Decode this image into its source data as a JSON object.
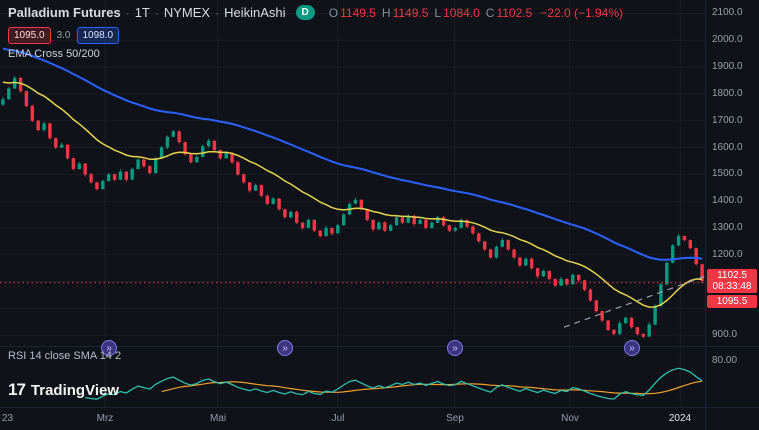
{
  "header": {
    "symbol": "Palladium Futures",
    "sep": "·",
    "interval": "1T",
    "exchange": "NYMEX",
    "chart_style": "HeikinAshi",
    "interval_badge": "D",
    "ohlc": {
      "o_label": "O",
      "o_value": "1149.5",
      "h_label": "H",
      "h_value": "1149.5",
      "l_label": "L",
      "l_value": "1084.0",
      "c_label": "C",
      "c_value": "1102.5",
      "change": "−22.0 (−1.94%)"
    },
    "bid": "1095.0",
    "spread": "3.0",
    "ask": "1098.0",
    "indicator_label": "EMA Cross 50/200"
  },
  "rsi_label": "RSI 14 close SMA 14 2",
  "price_scale": {
    "tick_values": [
      2100,
      2000,
      1900,
      1800,
      1700,
      1600,
      1500,
      1400,
      1300,
      1200,
      900
    ],
    "last_price": "1102.5",
    "countdown": "08:33:48",
    "line_price": "1095.5",
    "rsi_tick": "80.00"
  },
  "time_scale": {
    "ticks": [
      {
        "label": "23",
        "f": 0.0
      },
      {
        "label": "Mrz",
        "f": 0.149
      },
      {
        "label": "Mai",
        "f": 0.309
      },
      {
        "label": "Jul",
        "f": 0.479
      },
      {
        "label": "Sep",
        "f": 0.645
      },
      {
        "label": "Nov",
        "f": 0.808
      },
      {
        "label": "2024",
        "f": 0.965
      }
    ]
  },
  "logo": {
    "glyph": "17",
    "text": "TradingView"
  },
  "chart_data": [
    {
      "type": "candlestick",
      "title": "Palladium Futures 1T NYMEX HeikinAshi",
      "x_ticks": [
        "23",
        "Mrz",
        "Mai",
        "Jul",
        "Sep",
        "Nov",
        "2024"
      ],
      "ylim": [
        860,
        2150
      ],
      "up_color": "#089981",
      "down_color": "#f23645",
      "first_open": 1760,
      "closes": [
        1780,
        1820,
        1860,
        1810,
        1755,
        1700,
        1665,
        1690,
        1635,
        1600,
        1610,
        1560,
        1520,
        1540,
        1500,
        1470,
        1445,
        1475,
        1500,
        1480,
        1510,
        1480,
        1520,
        1555,
        1530,
        1505,
        1560,
        1600,
        1640,
        1660,
        1620,
        1575,
        1545,
        1565,
        1605,
        1625,
        1590,
        1560,
        1580,
        1545,
        1500,
        1470,
        1440,
        1460,
        1420,
        1390,
        1410,
        1370,
        1340,
        1360,
        1320,
        1300,
        1330,
        1290,
        1270,
        1300,
        1280,
        1310,
        1350,
        1390,
        1405,
        1370,
        1330,
        1295,
        1320,
        1290,
        1310,
        1340,
        1320,
        1345,
        1315,
        1330,
        1300,
        1320,
        1340,
        1310,
        1290,
        1300,
        1330,
        1305,
        1280,
        1250,
        1220,
        1190,
        1230,
        1255,
        1220,
        1190,
        1160,
        1185,
        1150,
        1120,
        1140,
        1110,
        1085,
        1110,
        1090,
        1125,
        1105,
        1070,
        1030,
        990,
        955,
        920,
        905,
        945,
        965,
        930,
        905,
        895,
        940,
        1010,
        1090,
        1170,
        1235,
        1270,
        1255,
        1225,
        1165,
        1102.5
      ],
      "current_bar": {
        "open": 1149.5,
        "high": 1149.5,
        "low": 1084.0,
        "close": 1102.5,
        "change": -22.0,
        "change_pct": -1.94
      },
      "overlays": [
        {
          "name": "EMA 200",
          "color": "#2962ff",
          "width": 2,
          "seed": 1975,
          "alpha": 0.032
        },
        {
          "name": "EMA 50",
          "color": "#e6d44e",
          "width": 1.5,
          "seed": 1850,
          "alpha": 0.1
        }
      ],
      "price_line": {
        "value": 1095.5,
        "color": "#f23645"
      },
      "trendline": {
        "f1": 0.8,
        "p1": 930,
        "f2": 1.0,
        "p2": 1120,
        "color": "#9aa0ae"
      },
      "markers": {
        "icon": "»",
        "indices": [
          18,
          48,
          77,
          107
        ],
        "color": "#8378e8"
      }
    },
    {
      "type": "line",
      "name": "RSI",
      "label": "RSI 14 close SMA 14 2",
      "period": 14,
      "sma_period": 14,
      "range": [
        15,
        95
      ],
      "rsi_color": "#2fbfae",
      "sma_color": "#f0a02a",
      "axis_tick": 80
    }
  ]
}
